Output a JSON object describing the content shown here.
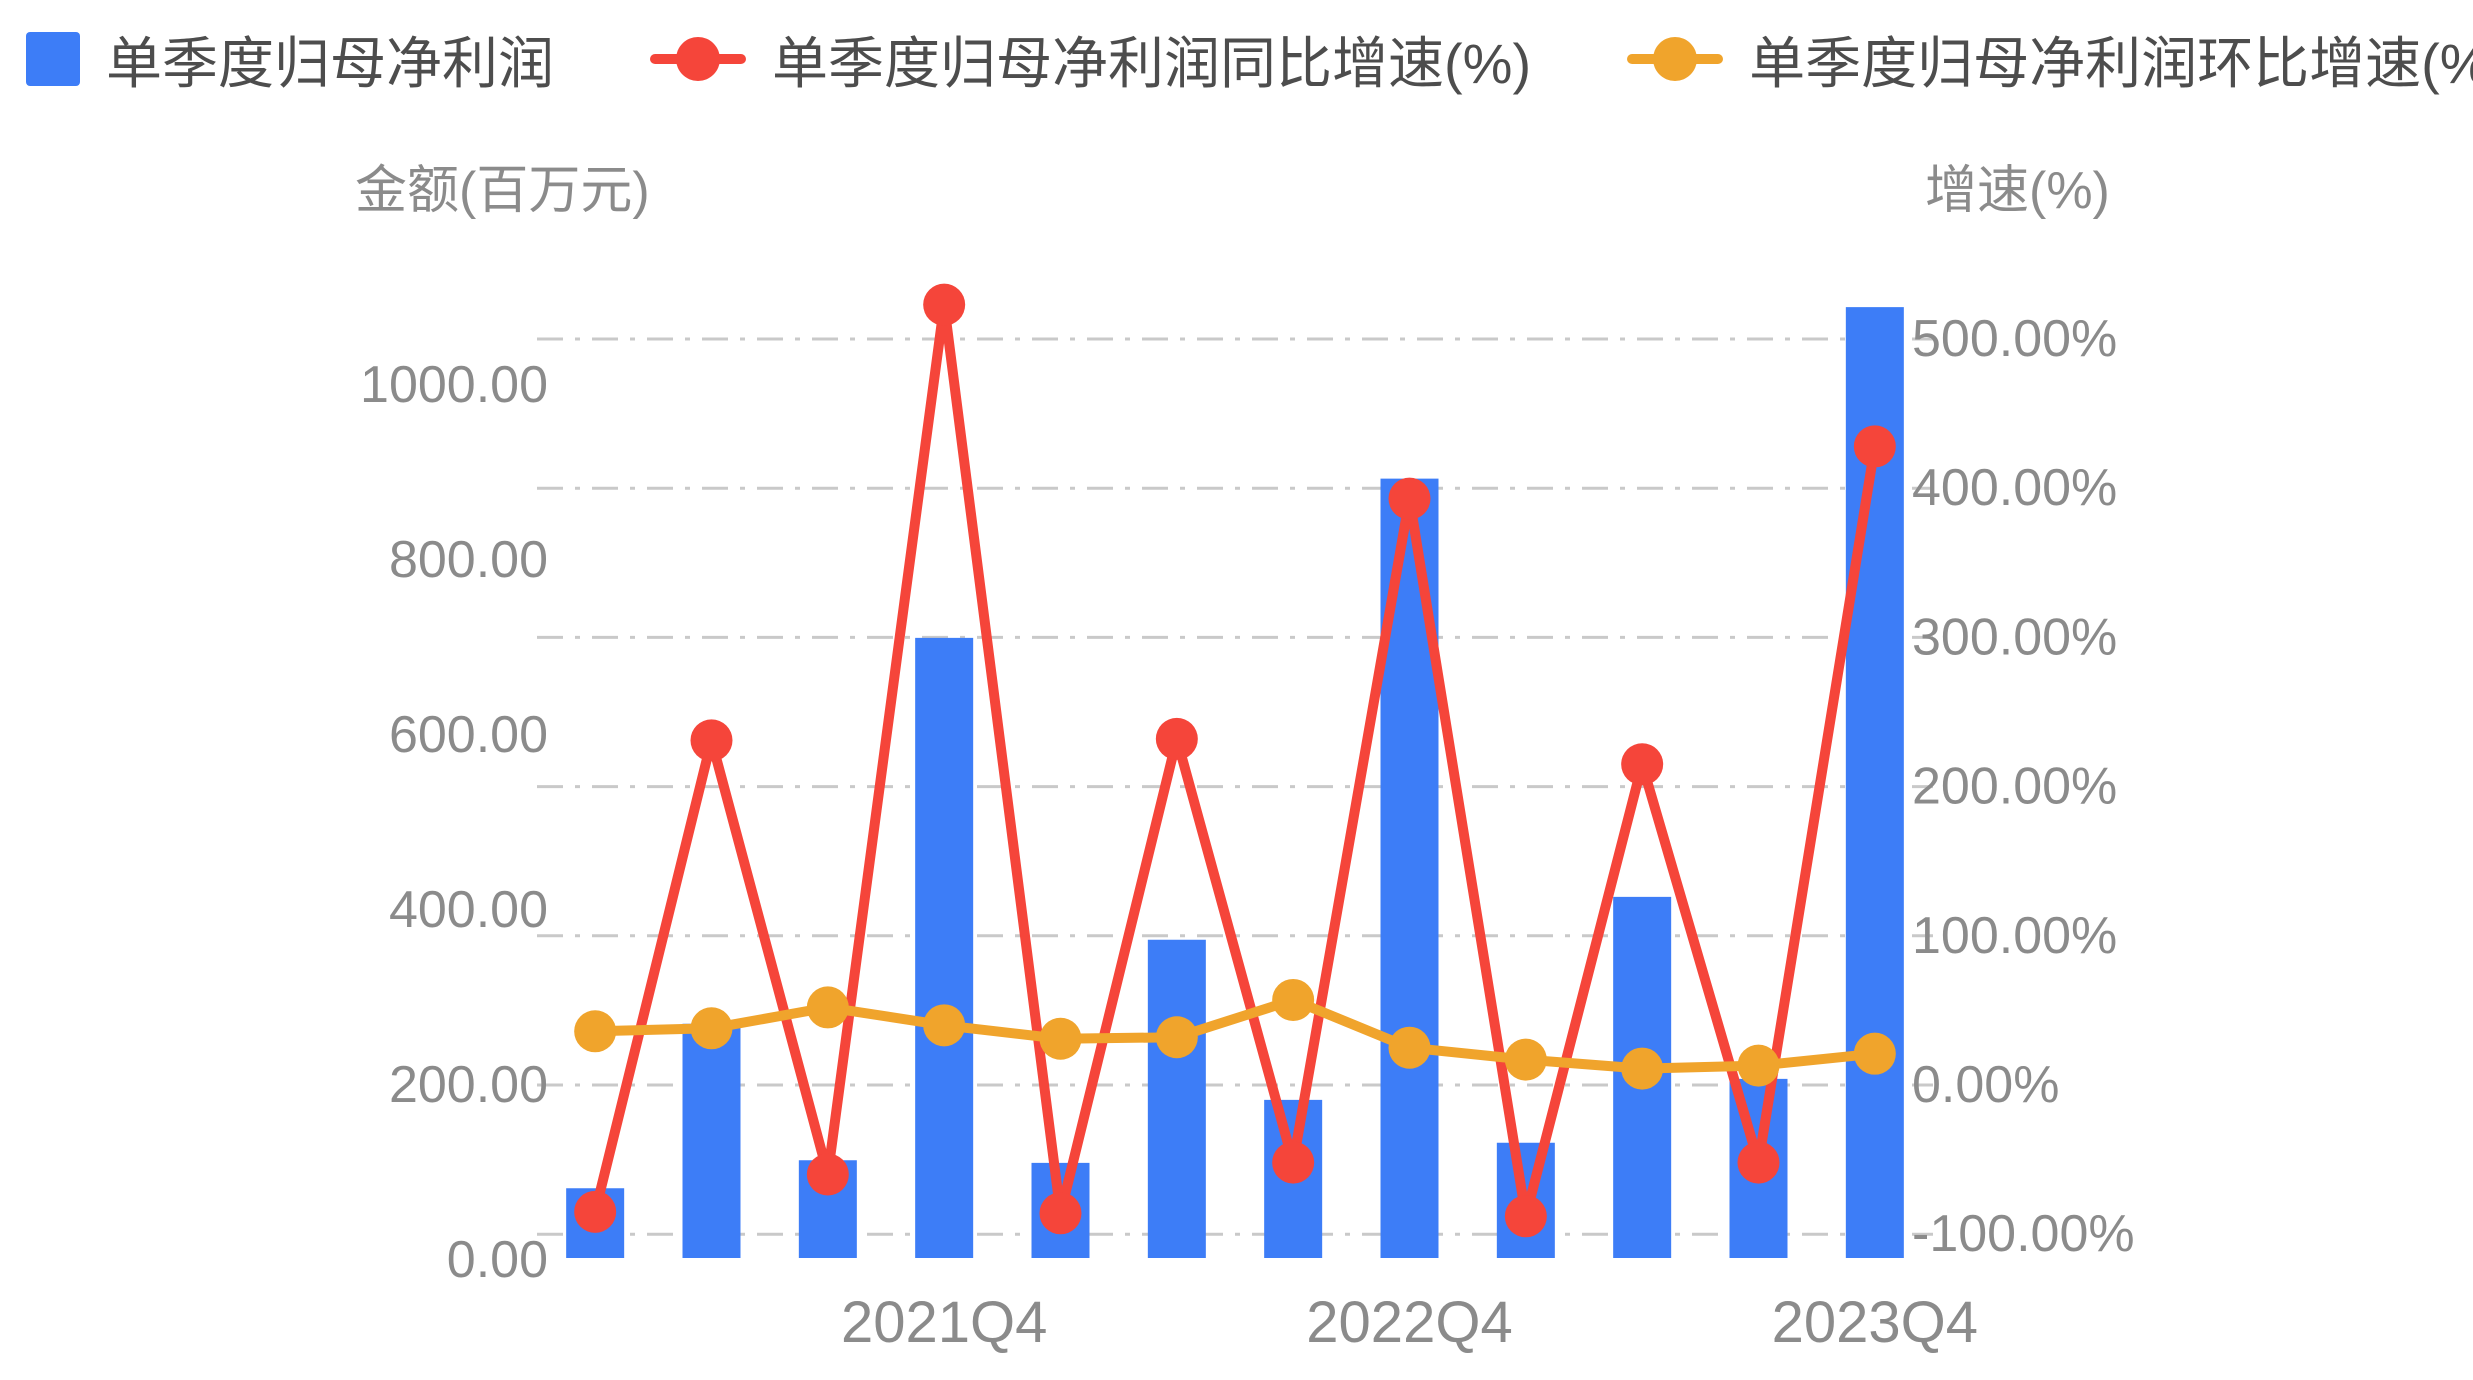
{
  "legend": {
    "bar_item": "单季度归母净利润",
    "yoy_item": "单季度归母净利润同比增速(%)",
    "qoq_item": "单季度归母净利润环比增速(%)"
  },
  "colors": {
    "bar": "#3d7df7",
    "yoy_line": "#f5453a",
    "qoq_line": "#f0a42c",
    "grid": "#c9c9c9",
    "axis_text": "#8b8b8b",
    "legend_text": "#4d4d4d"
  },
  "chart_data": {
    "type": "bar",
    "title": "",
    "categories": [
      "",
      "",
      "",
      "2021Q4",
      "",
      "",
      "",
      "2022Q4",
      "",
      "",
      "",
      "2023Q4"
    ],
    "series": [
      {
        "name": "单季度归母净利润",
        "type": "bar",
        "axis": "left",
        "values": [
          82,
          270,
          114,
          711,
          111,
          366,
          183,
          893,
          134,
          415,
          207,
          1089
        ]
      },
      {
        "name": "单季度归母净利润同比增速(%)",
        "type": "line",
        "axis": "right",
        "values": [
          -85,
          231,
          -60,
          523,
          -86,
          232,
          -52,
          393,
          -88,
          215,
          -52,
          428
        ]
      },
      {
        "name": "单季度归母净利润环比增速(%)",
        "type": "line",
        "axis": "right",
        "values": [
          36,
          38,
          52,
          40,
          31,
          32,
          57,
          25,
          17,
          11,
          13,
          21
        ]
      }
    ],
    "left_axis": {
      "title": "金额(百万元)",
      "ticks": [
        {
          "value": 0,
          "label": "0.00"
        },
        {
          "value": 200,
          "label": "200.00"
        },
        {
          "value": 400,
          "label": "400.00"
        },
        {
          "value": 600,
          "label": "600.00"
        },
        {
          "value": 800,
          "label": "800.00"
        },
        {
          "value": 1000,
          "label": "1000.00"
        }
      ]
    },
    "right_axis": {
      "title": "增速(%)",
      "ticks": [
        {
          "value": -100,
          "label": "-100.00%"
        },
        {
          "value": 0,
          "label": "0.00%"
        },
        {
          "value": 100,
          "label": "100.00%"
        },
        {
          "value": 200,
          "label": "200.00%"
        },
        {
          "value": 300,
          "label": "300.00%"
        },
        {
          "value": 400,
          "label": "400.00%"
        },
        {
          "value": 500,
          "label": "500.00%"
        }
      ]
    },
    "grid": "dash-dot horizontal lines, one per right-axis tick",
    "legend_position": "top-left"
  }
}
